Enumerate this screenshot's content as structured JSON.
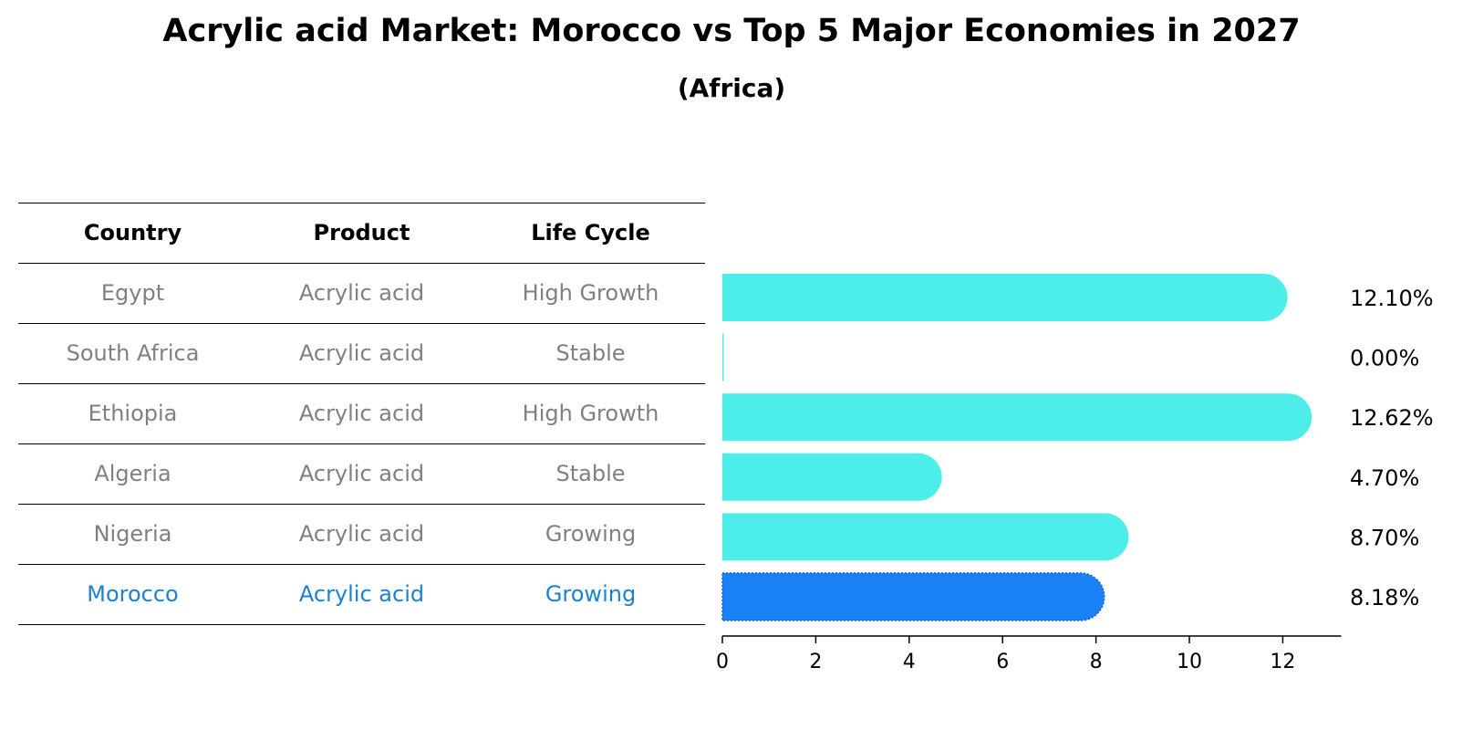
{
  "title": "Acrylic acid Market: Morocco vs Top 5 Major Economies in 2027",
  "subtitle": "(Africa)",
  "table": {
    "headers": [
      "Country",
      "Product",
      "Life Cycle"
    ],
    "rows": [
      {
        "country": "Egypt",
        "product": "Acrylic acid",
        "life_cycle": "High Growth"
      },
      {
        "country": "South Africa",
        "product": "Acrylic acid",
        "life_cycle": "Stable"
      },
      {
        "country": "Ethiopia",
        "product": "Acrylic acid",
        "life_cycle": "High Growth"
      },
      {
        "country": "Algeria",
        "product": "Acrylic acid",
        "life_cycle": "Stable"
      },
      {
        "country": "Nigeria",
        "product": "Acrylic acid",
        "life_cycle": "Growing"
      },
      {
        "country": "Morocco",
        "product": "Acrylic acid",
        "life_cycle": "Growing"
      }
    ]
  },
  "chart_data": {
    "type": "bar",
    "orientation": "horizontal",
    "categories": [
      "Egypt",
      "South Africa",
      "Ethiopia",
      "Algeria",
      "Nigeria",
      "Morocco"
    ],
    "values": [
      12.1,
      0.0,
      12.62,
      4.7,
      8.7,
      8.18
    ],
    "value_labels": [
      "12.10%",
      "0.00%",
      "12.62%",
      "4.70%",
      "8.70%",
      "8.18%"
    ],
    "highlight": "Morocco",
    "xlim": [
      0,
      13.25
    ],
    "xticks": [
      0,
      2,
      4,
      6,
      8,
      10,
      12
    ],
    "xtick_labels": [
      "0",
      "2",
      "4",
      "6",
      "8",
      "10",
      "12"
    ],
    "grid": false,
    "colors": {
      "default": "#4deeea",
      "highlight": "#1a82f6"
    }
  }
}
